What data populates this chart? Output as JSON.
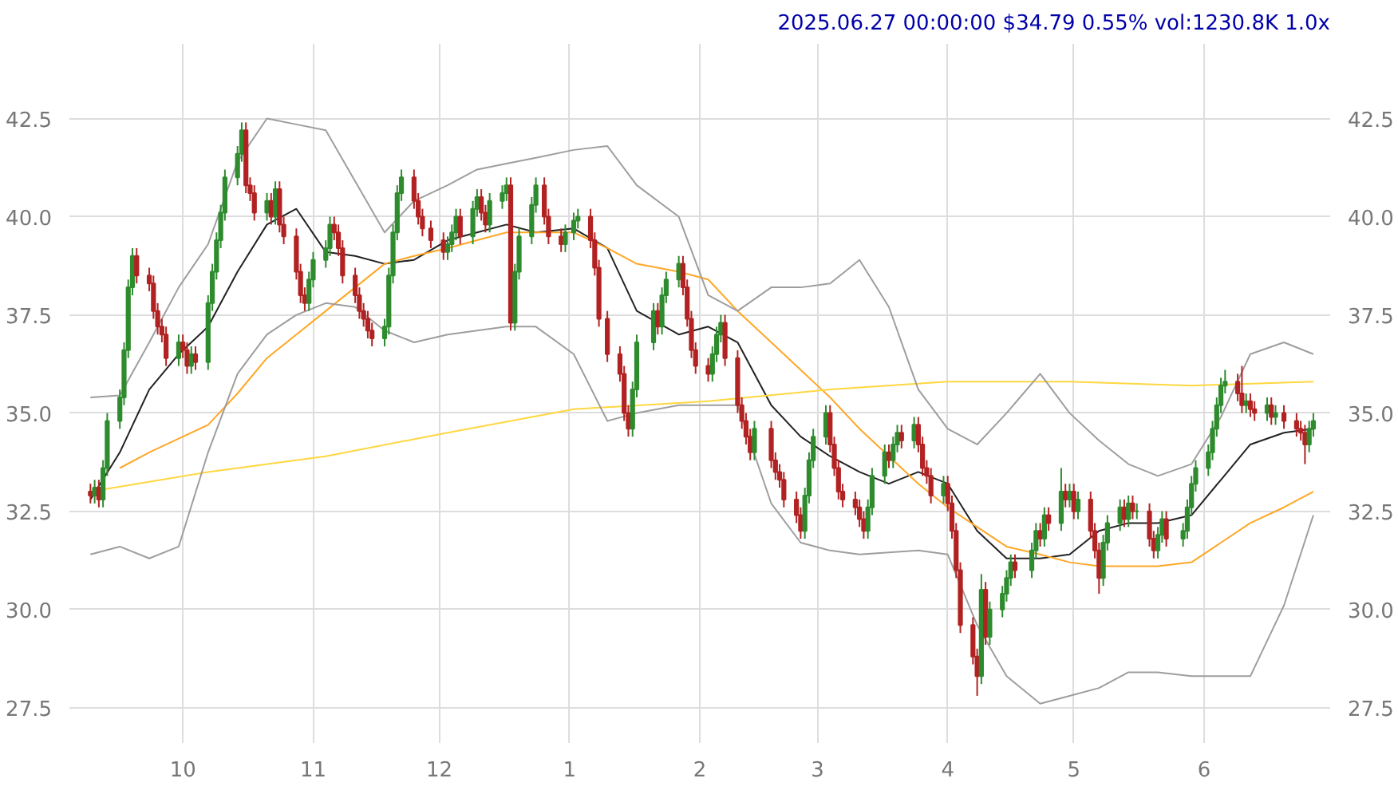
{
  "chart_data": {
    "type": "candlestick",
    "title": "2025.06.27 00:00:00 $34.79 0.55% vol:1230.8K 1.0x",
    "xlim": [
      "2024-09-04",
      "2025-07-01"
    ],
    "xticks": [
      {
        "value": "2024-10-01",
        "label": "10"
      },
      {
        "value": "2024-11-01",
        "label": "11"
      },
      {
        "value": "2024-12-01",
        "label": "12"
      },
      {
        "value": "2025-01-01",
        "label": "1"
      },
      {
        "value": "2025-02-01",
        "label": "2"
      },
      {
        "value": "2025-03-01",
        "label": "3"
      },
      {
        "value": "2025-04-01",
        "label": "4"
      },
      {
        "value": "2025-05-01",
        "label": "5"
      },
      {
        "value": "2025-06-01",
        "label": "6"
      }
    ],
    "ylim": [
      26.6,
      44.4
    ],
    "yticks": [
      27.5,
      {
        "value": 30,
        "label": "30.0"
      },
      32.5,
      {
        "value": 35,
        "label": "35.0"
      },
      37.5,
      {
        "value": 40,
        "label": "40.0"
      },
      42.5
    ],
    "y2lim": [
      26.6,
      44.4
    ],
    "y2ticks": [
      27.5,
      {
        "value": 30,
        "label": "30.0"
      },
      32.5,
      {
        "value": 35,
        "label": "35.0"
      },
      37.5,
      {
        "value": 40,
        "label": "40.0"
      },
      42.5
    ],
    "grid": true,
    "x": [
      "2024-09-09",
      "2024-09-10",
      "2024-09-11",
      "2024-09-12",
      "2024-09-13",
      "2024-09-16",
      "2024-09-17",
      "2024-09-18",
      "2024-09-19",
      "2024-09-20",
      "2024-09-23",
      "2024-09-24",
      "2024-09-25",
      "2024-09-26",
      "2024-09-27",
      "2024-09-30",
      "2024-10-01",
      "2024-10-02",
      "2024-10-03",
      "2024-10-04",
      "2024-10-07",
      "2024-10-08",
      "2024-10-09",
      "2024-10-10",
      "2024-10-11",
      "2024-10-14",
      "2024-10-15",
      "2024-10-16",
      "2024-10-17",
      "2024-10-18",
      "2024-10-21",
      "2024-10-22",
      "2024-10-23",
      "2024-10-24",
      "2024-10-25",
      "2024-10-28",
      "2024-10-29",
      "2024-10-30",
      "2024-10-31",
      "2024-11-01",
      "2024-11-04",
      "2024-11-05",
      "2024-11-06",
      "2024-11-07",
      "2024-11-08",
      "2024-11-11",
      "2024-11-12",
      "2024-11-13",
      "2024-11-14",
      "2024-11-15",
      "2024-11-18",
      "2024-11-19",
      "2024-11-20",
      "2024-11-21",
      "2024-11-22",
      "2024-11-25",
      "2024-11-26",
      "2024-11-27",
      "2024-11-29",
      "2024-12-02",
      "2024-12-03",
      "2024-12-04",
      "2024-12-05",
      "2024-12-06",
      "2024-12-09",
      "2024-12-10",
      "2024-12-11",
      "2024-12-12",
      "2024-12-13",
      "2024-12-16",
      "2024-12-17",
      "2024-12-18",
      "2024-12-19",
      "2024-12-20",
      "2024-12-23",
      "2024-12-24",
      "2024-12-26",
      "2024-12-27",
      "2024-12-30",
      "2024-12-31",
      "2025-01-02",
      "2025-01-03",
      "2025-01-06",
      "2025-01-07",
      "2025-01-08",
      "2025-01-10",
      "2025-01-13",
      "2025-01-14",
      "2025-01-15",
      "2025-01-16",
      "2025-01-17",
      "2025-01-21",
      "2025-01-22",
      "2025-01-23",
      "2025-01-24",
      "2025-01-27",
      "2025-01-28",
      "2025-01-29",
      "2025-01-30",
      "2025-01-31",
      "2025-02-03",
      "2025-02-04",
      "2025-02-05",
      "2025-02-06",
      "2025-02-07",
      "2025-02-10",
      "2025-02-11",
      "2025-02-12",
      "2025-02-13",
      "2025-02-14",
      "2025-02-18",
      "2025-02-19",
      "2025-02-20",
      "2025-02-21",
      "2025-02-24",
      "2025-02-25",
      "2025-02-26",
      "2025-02-27",
      "2025-02-28",
      "2025-03-03",
      "2025-03-04",
      "2025-03-05",
      "2025-03-06",
      "2025-03-07",
      "2025-03-10",
      "2025-03-11",
      "2025-03-12",
      "2025-03-13",
      "2025-03-14",
      "2025-03-17",
      "2025-03-18",
      "2025-03-19",
      "2025-03-20",
      "2025-03-21",
      "2025-03-24",
      "2025-03-25",
      "2025-03-26",
      "2025-03-27",
      "2025-03-28",
      "2025-03-31",
      "2025-04-01",
      "2025-04-02",
      "2025-04-03",
      "2025-04-04",
      "2025-04-07",
      "2025-04-08",
      "2025-04-09",
      "2025-04-10",
      "2025-04-11",
      "2025-04-14",
      "2025-04-15",
      "2025-04-16",
      "2025-04-17",
      "2025-04-21",
      "2025-04-22",
      "2025-04-23",
      "2025-04-24",
      "2025-04-25",
      "2025-04-28",
      "2025-04-29",
      "2025-04-30",
      "2025-05-01",
      "2025-05-02",
      "2025-05-05",
      "2025-05-06",
      "2025-05-07",
      "2025-05-08",
      "2025-05-09",
      "2025-05-12",
      "2025-05-13",
      "2025-05-14",
      "2025-05-15",
      "2025-05-16",
      "2025-05-19",
      "2025-05-20",
      "2025-05-21",
      "2025-05-22",
      "2025-05-23",
      "2025-05-27",
      "2025-05-28",
      "2025-05-29",
      "2025-05-30",
      "2025-06-02",
      "2025-06-03",
      "2025-06-04",
      "2025-06-05",
      "2025-06-06",
      "2025-06-09",
      "2025-06-10",
      "2025-06-11",
      "2025-06-12",
      "2025-06-13",
      "2025-06-16",
      "2025-06-17",
      "2025-06-18",
      "2025-06-20",
      "2025-06-23",
      "2025-06-24",
      "2025-06-25",
      "2025-06-26",
      "2025-06-27"
    ],
    "ohlc": [
      [
        33.0,
        33.2,
        32.7,
        32.9
      ],
      [
        32.9,
        33.3,
        32.7,
        33.1
      ],
      [
        33.1,
        33.3,
        32.6,
        32.8
      ],
      [
        32.8,
        33.8,
        32.6,
        33.6
      ],
      [
        33.6,
        35.0,
        33.4,
        34.8
      ],
      [
        34.8,
        35.6,
        34.6,
        35.4
      ],
      [
        35.4,
        36.8,
        35.2,
        36.6
      ],
      [
        36.6,
        38.4,
        36.4,
        38.2
      ],
      [
        38.2,
        39.2,
        38.0,
        39.0
      ],
      [
        39.0,
        39.2,
        38.3,
        38.5
      ],
      [
        38.5,
        38.7,
        38.1,
        38.3
      ],
      [
        38.3,
        38.5,
        37.4,
        37.6
      ],
      [
        37.6,
        37.8,
        37.0,
        37.2
      ],
      [
        37.2,
        37.4,
        36.8,
        37.0
      ],
      [
        37.0,
        37.2,
        36.2,
        36.4
      ],
      [
        36.4,
        37.0,
        36.2,
        36.8
      ],
      [
        36.8,
        37.0,
        36.4,
        36.6
      ],
      [
        36.6,
        36.8,
        36.0,
        36.2
      ],
      [
        36.2,
        36.7,
        36.0,
        36.5
      ],
      [
        36.5,
        36.7,
        36.1,
        36.3
      ],
      [
        36.3,
        38.0,
        36.1,
        37.8
      ],
      [
        37.8,
        38.8,
        37.6,
        38.6
      ],
      [
        38.6,
        39.6,
        38.4,
        39.4
      ],
      [
        39.4,
        40.3,
        39.2,
        40.1
      ],
      [
        40.1,
        41.2,
        39.9,
        41.0
      ],
      [
        41.0,
        41.8,
        40.8,
        41.6
      ],
      [
        41.6,
        42.4,
        41.4,
        42.2
      ],
      [
        42.2,
        42.4,
        40.6,
        40.8
      ],
      [
        40.8,
        41.0,
        40.4,
        40.6
      ],
      [
        40.6,
        40.8,
        39.9,
        40.1
      ],
      [
        40.1,
        40.6,
        39.9,
        40.4
      ],
      [
        40.4,
        40.6,
        39.8,
        40.0
      ],
      [
        40.0,
        40.9,
        39.8,
        40.7
      ],
      [
        40.7,
        40.9,
        39.6,
        39.8
      ],
      [
        39.8,
        40.0,
        39.3,
        39.5
      ],
      [
        39.5,
        39.7,
        38.4,
        38.6
      ],
      [
        38.6,
        38.8,
        37.8,
        38.0
      ],
      [
        38.0,
        38.2,
        37.6,
        37.8
      ],
      [
        37.8,
        38.6,
        37.6,
        38.4
      ],
      [
        38.4,
        39.1,
        38.2,
        38.9
      ],
      [
        38.9,
        39.4,
        38.7,
        39.2
      ],
      [
        39.2,
        40.0,
        39.0,
        39.8
      ],
      [
        39.8,
        40.0,
        39.4,
        39.6
      ],
      [
        39.6,
        39.8,
        39.0,
        39.2
      ],
      [
        39.2,
        39.4,
        38.3,
        38.5
      ],
      [
        38.5,
        38.7,
        37.8,
        38.0
      ],
      [
        38.0,
        38.2,
        37.4,
        37.6
      ],
      [
        37.6,
        37.8,
        37.2,
        37.4
      ],
      [
        37.4,
        37.6,
        36.9,
        37.1
      ],
      [
        37.1,
        37.3,
        36.7,
        36.9
      ],
      [
        36.9,
        37.4,
        36.7,
        37.2
      ],
      [
        37.2,
        38.7,
        37.0,
        38.5
      ],
      [
        38.5,
        39.8,
        38.3,
        39.6
      ],
      [
        39.6,
        40.8,
        39.4,
        40.6
      ],
      [
        40.6,
        41.2,
        40.4,
        41.0
      ],
      [
        41.0,
        41.2,
        40.2,
        40.4
      ],
      [
        40.4,
        40.6,
        39.8,
        40.0
      ],
      [
        40.0,
        40.2,
        39.5,
        39.7
      ],
      [
        39.7,
        39.9,
        39.2,
        39.4
      ],
      [
        39.4,
        39.6,
        38.9,
        39.1
      ],
      [
        39.1,
        39.5,
        38.9,
        39.3
      ],
      [
        39.3,
        39.8,
        39.1,
        39.6
      ],
      [
        39.6,
        40.2,
        39.4,
        40.0
      ],
      [
        40.0,
        40.2,
        39.3,
        39.5
      ],
      [
        39.5,
        40.4,
        39.3,
        40.2
      ],
      [
        40.2,
        40.7,
        40.0,
        40.5
      ],
      [
        40.5,
        40.7,
        39.9,
        40.1
      ],
      [
        40.1,
        40.3,
        39.6,
        39.8
      ],
      [
        39.8,
        40.6,
        39.6,
        40.4
      ],
      [
        40.4,
        40.8,
        40.2,
        40.6
      ],
      [
        40.6,
        41.0,
        40.4,
        40.8
      ],
      [
        40.8,
        41.0,
        37.1,
        37.3
      ],
      [
        37.3,
        38.8,
        37.1,
        38.6
      ],
      [
        38.6,
        39.7,
        38.4,
        39.5
      ],
      [
        39.5,
        40.5,
        39.3,
        40.3
      ],
      [
        40.3,
        41.0,
        40.1,
        40.8
      ],
      [
        40.8,
        41.0,
        39.8,
        40.0
      ],
      [
        40.0,
        40.2,
        39.3,
        39.5
      ],
      [
        39.5,
        39.7,
        39.1,
        39.3
      ],
      [
        39.3,
        39.8,
        39.1,
        39.6
      ],
      [
        39.6,
        40.1,
        39.4,
        39.9
      ],
      [
        39.9,
        40.2,
        39.7,
        40.0
      ],
      [
        40.0,
        40.2,
        39.2,
        39.4
      ],
      [
        39.4,
        39.6,
        38.5,
        38.7
      ],
      [
        38.7,
        38.9,
        37.2,
        37.4
      ],
      [
        37.4,
        37.6,
        36.3,
        36.5
      ],
      [
        36.5,
        36.7,
        35.8,
        36.0
      ],
      [
        36.0,
        36.2,
        34.8,
        35.0
      ],
      [
        35.0,
        35.2,
        34.4,
        34.6
      ],
      [
        34.6,
        35.8,
        34.4,
        35.6
      ],
      [
        35.6,
        37.0,
        35.4,
        36.8
      ],
      [
        36.8,
        37.8,
        36.6,
        37.6
      ],
      [
        37.6,
        37.8,
        37.0,
        37.2
      ],
      [
        37.2,
        38.2,
        37.0,
        38.0
      ],
      [
        38.0,
        38.6,
        37.8,
        38.4
      ],
      [
        38.4,
        39.0,
        38.2,
        38.8
      ],
      [
        38.8,
        39.0,
        38.0,
        38.2
      ],
      [
        38.2,
        38.4,
        37.2,
        37.4
      ],
      [
        37.4,
        37.6,
        36.4,
        36.6
      ],
      [
        36.6,
        36.8,
        36.0,
        36.2
      ],
      [
        36.2,
        36.4,
        35.8,
        36.0
      ],
      [
        36.0,
        36.7,
        35.8,
        36.5
      ],
      [
        36.5,
        37.2,
        36.3,
        37.0
      ],
      [
        37.0,
        37.5,
        36.8,
        37.3
      ],
      [
        37.3,
        37.5,
        36.2,
        36.4
      ],
      [
        36.4,
        36.6,
        35.0,
        35.2
      ],
      [
        35.2,
        35.4,
        34.6,
        34.8
      ],
      [
        34.8,
        35.0,
        34.2,
        34.4
      ],
      [
        34.4,
        34.6,
        33.8,
        34.0
      ],
      [
        34.0,
        34.8,
        33.8,
        34.6
      ],
      [
        34.6,
        34.8,
        33.6,
        33.8
      ],
      [
        33.8,
        34.0,
        33.3,
        33.5
      ],
      [
        33.5,
        33.7,
        33.1,
        33.3
      ],
      [
        33.3,
        33.5,
        32.6,
        32.8
      ],
      [
        32.8,
        33.0,
        32.2,
        32.4
      ],
      [
        32.4,
        32.6,
        31.8,
        32.0
      ],
      [
        32.0,
        33.1,
        31.8,
        32.9
      ],
      [
        32.9,
        34.0,
        32.7,
        33.8
      ],
      [
        33.8,
        34.6,
        33.6,
        34.4
      ],
      [
        34.4,
        35.2,
        34.2,
        35.0
      ],
      [
        35.0,
        35.2,
        34.0,
        34.2
      ],
      [
        34.2,
        34.4,
        33.4,
        33.6
      ],
      [
        33.6,
        33.8,
        32.8,
        33.0
      ],
      [
        33.0,
        33.2,
        32.6,
        32.8
      ],
      [
        32.8,
        33.0,
        32.4,
        32.6
      ],
      [
        32.6,
        32.8,
        32.1,
        32.3
      ],
      [
        32.3,
        32.5,
        31.8,
        32.0
      ],
      [
        32.0,
        32.8,
        31.8,
        32.6
      ],
      [
        32.6,
        33.6,
        32.4,
        33.4
      ],
      [
        33.4,
        34.2,
        33.2,
        34.0
      ],
      [
        34.0,
        34.2,
        33.6,
        33.8
      ],
      [
        33.8,
        34.4,
        33.6,
        34.2
      ],
      [
        34.2,
        34.7,
        34.0,
        34.5
      ],
      [
        34.5,
        34.7,
        34.1,
        34.3
      ],
      [
        34.3,
        34.9,
        34.1,
        34.7
      ],
      [
        34.7,
        34.9,
        34.0,
        34.2
      ],
      [
        34.2,
        34.4,
        33.4,
        33.6
      ],
      [
        33.6,
        33.8,
        33.2,
        33.4
      ],
      [
        33.4,
        33.6,
        32.7,
        32.9
      ],
      [
        32.9,
        33.4,
        32.7,
        33.2
      ],
      [
        33.2,
        33.4,
        32.5,
        32.7
      ],
      [
        32.7,
        32.9,
        31.8,
        32.0
      ],
      [
        32.0,
        32.2,
        30.8,
        31.0
      ],
      [
        31.0,
        31.2,
        29.4,
        29.6
      ],
      [
        29.6,
        29.8,
        28.6,
        28.8
      ],
      [
        28.8,
        29.0,
        27.8,
        28.3
      ],
      [
        28.3,
        30.9,
        28.1,
        30.5
      ],
      [
        30.5,
        30.7,
        29.1,
        29.3
      ],
      [
        29.3,
        30.2,
        29.1,
        30.0
      ],
      [
        30.0,
        30.6,
        29.8,
        30.4
      ],
      [
        30.4,
        31.0,
        30.2,
        30.8
      ],
      [
        30.8,
        31.4,
        30.6,
        31.2
      ],
      [
        31.2,
        31.4,
        30.8,
        31.0
      ],
      [
        31.0,
        31.7,
        30.8,
        31.5
      ],
      [
        31.5,
        32.2,
        31.3,
        32.0
      ],
      [
        32.0,
        32.2,
        31.6,
        31.8
      ],
      [
        31.8,
        32.6,
        31.6,
        32.4
      ],
      [
        32.4,
        32.6,
        32.0,
        32.2
      ],
      [
        32.2,
        33.6,
        32.0,
        33.0
      ],
      [
        33.0,
        33.2,
        32.6,
        32.8
      ],
      [
        32.8,
        33.2,
        32.6,
        33.0
      ],
      [
        33.0,
        33.2,
        32.3,
        32.5
      ],
      [
        32.5,
        33.0,
        32.3,
        32.8
      ],
      [
        32.8,
        33.0,
        31.8,
        32.0
      ],
      [
        32.0,
        32.2,
        31.3,
        31.5
      ],
      [
        31.5,
        31.7,
        30.4,
        30.8
      ],
      [
        30.8,
        31.9,
        30.6,
        31.7
      ],
      [
        31.7,
        32.4,
        31.5,
        32.2
      ],
      [
        32.2,
        32.8,
        32.0,
        32.6
      ],
      [
        32.6,
        32.8,
        32.1,
        32.3
      ],
      [
        32.3,
        32.9,
        32.1,
        32.7
      ],
      [
        32.7,
        32.9,
        32.3,
        32.5
      ],
      [
        32.5,
        32.7,
        32.3,
        32.5
      ],
      [
        32.5,
        32.7,
        31.6,
        31.8
      ],
      [
        31.8,
        32.0,
        31.3,
        31.5
      ],
      [
        31.5,
        32.1,
        31.3,
        31.9
      ],
      [
        31.9,
        32.5,
        31.7,
        32.3
      ],
      [
        32.3,
        32.5,
        31.6,
        31.8
      ],
      [
        31.8,
        32.2,
        31.6,
        32.0
      ],
      [
        32.0,
        32.8,
        31.8,
        32.6
      ],
      [
        32.6,
        33.4,
        32.4,
        33.2
      ],
      [
        33.2,
        33.8,
        33.0,
        33.6
      ],
      [
        33.6,
        34.2,
        33.4,
        34.0
      ],
      [
        34.0,
        34.8,
        33.8,
        34.6
      ],
      [
        34.6,
        35.4,
        34.4,
        35.2
      ],
      [
        35.2,
        35.9,
        35.0,
        35.7
      ],
      [
        35.7,
        36.1,
        35.5,
        35.8
      ],
      [
        35.8,
        36.0,
        35.3,
        35.5
      ],
      [
        35.5,
        36.2,
        35.0,
        35.2
      ],
      [
        35.2,
        35.5,
        35.0,
        35.3
      ],
      [
        35.3,
        35.5,
        34.9,
        35.1
      ],
      [
        35.1,
        35.3,
        34.8,
        35.0
      ],
      [
        35.0,
        35.4,
        34.8,
        35.2
      ],
      [
        35.2,
        35.4,
        34.7,
        34.9
      ],
      [
        34.9,
        35.2,
        34.7,
        35.0
      ],
      [
        35.0,
        35.2,
        34.6,
        34.8
      ],
      [
        34.8,
        35.0,
        34.4,
        34.6
      ],
      [
        34.6,
        34.8,
        34.3,
        34.5
      ],
      [
        34.5,
        34.7,
        33.7,
        34.2
      ],
      [
        34.2,
        34.8,
        34.0,
        34.6
      ],
      [
        34.6,
        35.0,
        34.4,
        34.8
      ]
    ],
    "series": [
      {
        "type": "line",
        "color": "#222222",
        "x": [
          "2024-09-09",
          "2024-09-16",
          "2024-09-23",
          "2024-09-30",
          "2024-10-07",
          "2024-10-14",
          "2024-10-21",
          "2024-10-28",
          "2024-11-04",
          "2024-11-11",
          "2024-11-18",
          "2024-11-25",
          "2024-12-03",
          "2024-12-10",
          "2024-12-17",
          "2024-12-24",
          "2025-01-02",
          "2025-01-10",
          "2025-01-17",
          "2025-01-27",
          "2025-02-03",
          "2025-02-10",
          "2025-02-18",
          "2025-02-25",
          "2025-03-04",
          "2025-03-11",
          "2025-03-18",
          "2025-03-25",
          "2025-04-01",
          "2025-04-08",
          "2025-04-15",
          "2025-04-23",
          "2025-04-30",
          "2025-05-07",
          "2025-05-14",
          "2025-05-21",
          "2025-05-29",
          "2025-06-05",
          "2025-06-12",
          "2025-06-20",
          "2025-06-27"
        ],
        "values": [
          32.8,
          34.0,
          35.6,
          36.5,
          37.2,
          38.6,
          39.8,
          40.2,
          39.1,
          39.0,
          38.8,
          38.9,
          39.4,
          39.6,
          39.8,
          39.6,
          39.7,
          39.2,
          37.6,
          37.0,
          37.2,
          36.8,
          35.2,
          34.4,
          33.9,
          33.5,
          33.2,
          33.5,
          33.2,
          32.0,
          31.3,
          31.3,
          31.4,
          32.0,
          32.2,
          32.2,
          32.4,
          33.3,
          34.2,
          34.5,
          34.6
        ]
      },
      {
        "type": "line",
        "color": "#ffa726",
        "x": [
          "2024-09-16",
          "2024-09-23",
          "2024-09-30",
          "2024-10-07",
          "2024-10-14",
          "2024-10-21",
          "2024-10-28",
          "2024-11-04",
          "2024-11-11",
          "2024-11-18",
          "2024-11-25",
          "2024-12-03",
          "2024-12-10",
          "2024-12-17",
          "2024-12-24",
          "2025-01-02",
          "2025-01-10",
          "2025-01-17",
          "2025-01-27",
          "2025-02-03",
          "2025-02-10",
          "2025-02-18",
          "2025-02-25",
          "2025-03-04",
          "2025-03-11",
          "2025-03-18",
          "2025-03-25",
          "2025-04-01",
          "2025-04-08",
          "2025-04-15",
          "2025-04-23",
          "2025-04-30",
          "2025-05-07",
          "2025-05-14",
          "2025-05-21",
          "2025-05-29",
          "2025-06-05",
          "2025-06-12",
          "2025-06-20",
          "2025-06-27"
        ],
        "values": [
          33.6,
          34.0,
          34.35,
          34.7,
          35.5,
          36.4,
          37.0,
          37.6,
          38.2,
          38.8,
          39.0,
          39.2,
          39.4,
          39.6,
          39.6,
          39.6,
          39.2,
          38.8,
          38.6,
          38.4,
          37.6,
          36.8,
          36.1,
          35.4,
          34.6,
          33.9,
          33.2,
          32.6,
          32.1,
          31.6,
          31.4,
          31.2,
          31.1,
          31.1,
          31.1,
          31.2,
          31.7,
          32.2,
          32.6,
          33.0
        ]
      },
      {
        "type": "line",
        "color": "#ffd740",
        "x": [
          "2024-09-09",
          "2024-10-07",
          "2024-11-04",
          "2024-12-03",
          "2025-01-02",
          "2025-02-03",
          "2025-03-04",
          "2025-04-01",
          "2025-04-30",
          "2025-05-29",
          "2025-06-27"
        ],
        "values": [
          33.0,
          33.5,
          33.9,
          34.5,
          35.1,
          35.3,
          35.6,
          35.8,
          35.8,
          35.7,
          35.8
        ]
      },
      {
        "type": "line",
        "color": "#9e9e9e",
        "x": [
          "2024-09-09",
          "2024-09-16",
          "2024-09-23",
          "2024-09-30",
          "2024-10-07",
          "2024-10-14",
          "2024-10-21",
          "2024-10-28",
          "2024-11-04",
          "2024-11-11",
          "2024-11-18",
          "2024-11-25",
          "2024-12-03",
          "2024-12-10",
          "2024-12-17",
          "2024-12-24",
          "2025-01-02",
          "2025-01-10",
          "2025-01-17",
          "2025-01-27",
          "2025-02-03",
          "2025-02-10",
          "2025-02-18",
          "2025-02-25",
          "2025-03-04",
          "2025-03-11",
          "2025-03-18",
          "2025-03-25",
          "2025-04-01",
          "2025-04-08",
          "2025-04-15",
          "2025-04-23",
          "2025-04-30",
          "2025-05-07",
          "2025-05-14",
          "2025-05-21",
          "2025-05-29",
          "2025-06-05",
          "2025-06-12",
          "2025-06-20",
          "2025-06-27"
        ],
        "values": [
          35.4,
          35.45,
          36.8,
          38.2,
          39.3,
          41.4,
          42.5,
          42.35,
          42.2,
          40.9,
          39.6,
          40.4,
          40.8,
          41.2,
          41.35,
          41.5,
          41.7,
          41.8,
          40.8,
          40.0,
          38.0,
          37.6,
          38.2,
          38.2,
          38.3,
          38.9,
          37.7,
          35.6,
          34.6,
          34.2,
          35.0,
          36.0,
          35.0,
          34.3,
          33.7,
          33.4,
          33.7,
          34.9,
          36.5,
          36.8,
          36.5
        ]
      },
      {
        "type": "line",
        "color": "#9e9e9e",
        "x": [
          "2024-09-09",
          "2024-09-16",
          "2024-09-23",
          "2024-09-30",
          "2024-10-07",
          "2024-10-14",
          "2024-10-21",
          "2024-10-28",
          "2024-11-04",
          "2024-11-11",
          "2024-11-18",
          "2024-11-25",
          "2024-12-03",
          "2024-12-10",
          "2024-12-17",
          "2024-12-24",
          "2025-01-02",
          "2025-01-10",
          "2025-01-17",
          "2025-01-27",
          "2025-02-03",
          "2025-02-10",
          "2025-02-18",
          "2025-02-25",
          "2025-03-04",
          "2025-03-11",
          "2025-03-18",
          "2025-03-25",
          "2025-04-01",
          "2025-04-08",
          "2025-04-15",
          "2025-04-23",
          "2025-04-30",
          "2025-05-07",
          "2025-05-14",
          "2025-05-21",
          "2025-05-29",
          "2025-06-05",
          "2025-06-12",
          "2025-06-20",
          "2025-06-27"
        ],
        "values": [
          31.4,
          31.6,
          31.3,
          31.6,
          34.0,
          36.0,
          37.0,
          37.5,
          37.8,
          37.7,
          37.1,
          36.8,
          37.0,
          37.1,
          37.2,
          37.2,
          36.5,
          34.8,
          35.0,
          35.2,
          35.2,
          35.2,
          32.7,
          31.7,
          31.5,
          31.4,
          31.45,
          31.5,
          31.4,
          29.6,
          28.3,
          27.6,
          27.8,
          28.0,
          28.4,
          28.4,
          28.3,
          28.3,
          28.3,
          30.1,
          32.4
        ]
      }
    ]
  }
}
